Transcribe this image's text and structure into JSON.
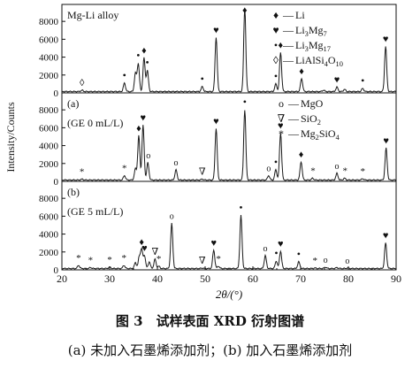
{
  "caption": {
    "title": "图 3　试样表面 XRD 衍射图谱",
    "subtitle": "(a) 未加入石墨烯添加剂；(b) 加入石墨烯添加剂"
  },
  "chart_data": {
    "type": "line",
    "xlabel": "2θ/(°)",
    "ylabel": "Intensity/Counts",
    "xlim": [
      20,
      90
    ],
    "ylim": [
      0,
      9500
    ],
    "x_ticks": [
      20,
      30,
      40,
      50,
      60,
      70,
      80,
      90
    ],
    "x_tick_labels": [
      "20",
      "30",
      "40",
      "50",
      "60",
      "70",
      "80",
      "90"
    ],
    "y_ticks": [
      0,
      2000,
      4000,
      6000,
      8000
    ],
    "y_tick_labels": [
      "0",
      "2000",
      "4000",
      "6000",
      "8000"
    ],
    "grid": false,
    "stacked_panels": true,
    "markers": {
      "Li": "♦",
      "Li3Mg7": "♥",
      "Li3Mg17": "•",
      "LiAlSi4O10": "◊",
      "MgO": "o",
      "SiO2": "∇",
      "Mg2SiO4": "*"
    },
    "panels": [
      {
        "id": "alloy",
        "label": "Mg-Li alloy",
        "label2": "",
        "line_color": "#1a1a1a",
        "baseline": 150,
        "peaks": [
          {
            "x": 24.2,
            "y": 300
          },
          {
            "x": 33.1,
            "y": 1100
          },
          {
            "x": 35.4,
            "y": 2200
          },
          {
            "x": 36.0,
            "y": 3300
          },
          {
            "x": 37.2,
            "y": 3900
          },
          {
            "x": 37.9,
            "y": 2500
          },
          {
            "x": 49.4,
            "y": 700
          },
          {
            "x": 52.3,
            "y": 6200
          },
          {
            "x": 58.3,
            "y": 9500
          },
          {
            "x": 64.8,
            "y": 1000
          },
          {
            "x": 65.8,
            "y": 4500
          },
          {
            "x": 70.2,
            "y": 1600
          },
          {
            "x": 74.8,
            "y": 300
          },
          {
            "x": 77.6,
            "y": 650
          },
          {
            "x": 79.2,
            "y": 400
          },
          {
            "x": 83.0,
            "y": 500
          },
          {
            "x": 87.8,
            "y": 5200
          }
        ],
        "labels": [
          {
            "s": "♦",
            "x": 58.3,
            "y": 9500
          },
          {
            "s": "♥",
            "x": 52.3,
            "y": 6200
          },
          {
            "s": "♦",
            "x": 65.8,
            "y": 4500
          },
          {
            "s": "♥",
            "x": 87.8,
            "y": 5200
          },
          {
            "s": "♦",
            "x": 37.2,
            "y": 3900
          },
          {
            "s": "•",
            "x": 36.0,
            "y": 3300
          },
          {
            "s": "•",
            "x": 37.9,
            "y": 2500
          },
          {
            "s": "•",
            "x": 33.1,
            "y": 1100
          },
          {
            "s": "•",
            "x": 49.4,
            "y": 700
          },
          {
            "s": "•",
            "x": 64.8,
            "y": 1000
          },
          {
            "s": "♦",
            "x": 70.2,
            "y": 1600
          },
          {
            "s": "♥",
            "x": 77.6,
            "y": 650
          },
          {
            "s": "•",
            "x": 83.0,
            "y": 500
          },
          {
            "s": "◊",
            "x": 24.2,
            "y": 300
          }
        ],
        "legend": [
          {
            "symbol": "♦",
            "text": "Li"
          },
          {
            "symbol": "♥",
            "text": "Li3Mg7"
          },
          {
            "symbol": "•",
            "text": "Li3Mg17"
          },
          {
            "symbol": "◊",
            "text": "LiAlSi4O10"
          }
        ]
      },
      {
        "id": "a",
        "label": "(a)",
        "label2": "(GE 0 mL/L)",
        "line_color": "#1a1a1a",
        "baseline": 150,
        "peaks": [
          {
            "x": 24.2,
            "y": 250
          },
          {
            "x": 33.1,
            "y": 650
          },
          {
            "x": 35.4,
            "y": 1400
          },
          {
            "x": 36.1,
            "y": 5100
          },
          {
            "x": 37.0,
            "y": 6300
          },
          {
            "x": 38.0,
            "y": 2100
          },
          {
            "x": 43.9,
            "y": 1300
          },
          {
            "x": 49.4,
            "y": 250
          },
          {
            "x": 52.3,
            "y": 5900
          },
          {
            "x": 58.3,
            "y": 8000
          },
          {
            "x": 63.3,
            "y": 650
          },
          {
            "x": 64.8,
            "y": 1300
          },
          {
            "x": 65.8,
            "y": 5400
          },
          {
            "x": 70.1,
            "y": 2200
          },
          {
            "x": 72.5,
            "y": 350
          },
          {
            "x": 77.6,
            "y": 900
          },
          {
            "x": 79.2,
            "y": 350
          },
          {
            "x": 83.0,
            "y": 300
          },
          {
            "x": 87.9,
            "y": 3700
          }
        ],
        "labels": [
          {
            "s": "•",
            "x": 58.3,
            "y": 8000
          },
          {
            "s": "♥",
            "x": 37.0,
            "y": 6300
          },
          {
            "s": "♥",
            "x": 52.3,
            "y": 5900
          },
          {
            "s": "♥",
            "x": 65.8,
            "y": 5400
          },
          {
            "s": "♥",
            "x": 87.9,
            "y": 3700
          },
          {
            "s": "♦",
            "x": 36.1,
            "y": 5100
          },
          {
            "s": "o",
            "x": 38.1,
            "y": 2100
          },
          {
            "s": "o",
            "x": 43.9,
            "y": 1300
          },
          {
            "s": "∇",
            "x": 49.4,
            "y": 250
          },
          {
            "s": "o",
            "x": 63.3,
            "y": 650
          },
          {
            "s": "•",
            "x": 64.8,
            "y": 1300
          },
          {
            "s": "♦",
            "x": 70.1,
            "y": 2200
          },
          {
            "s": "*",
            "x": 72.6,
            "y": 350
          },
          {
            "s": "o",
            "x": 77.6,
            "y": 900
          },
          {
            "s": "*",
            "x": 33.1,
            "y": 650
          },
          {
            "s": "*",
            "x": 24.2,
            "y": 250
          },
          {
            "s": "*",
            "x": 79.3,
            "y": 350
          },
          {
            "s": "*",
            "x": 83.0,
            "y": 300
          }
        ],
        "legend": [
          {
            "symbol": "o",
            "text": "MgO"
          },
          {
            "symbol": "∇",
            "text": "SiO2"
          },
          {
            "symbol": "*",
            "text": "Mg2SiO4"
          }
        ]
      },
      {
        "id": "b",
        "label": "(b)",
        "label2": "(GE 5 mL/L)",
        "line_color": "#1a1a1a",
        "baseline": 150,
        "peaks": [
          {
            "x": 23.5,
            "y": 500
          },
          {
            "x": 26.0,
            "y": 250
          },
          {
            "x": 30.0,
            "y": 300
          },
          {
            "x": 33.0,
            "y": 500
          },
          {
            "x": 35.4,
            "y": 800
          },
          {
            "x": 36.2,
            "y": 1400
          },
          {
            "x": 36.7,
            "y": 2300
          },
          {
            "x": 37.3,
            "y": 1600
          },
          {
            "x": 38.3,
            "y": 900
          },
          {
            "x": 39.5,
            "y": 1200
          },
          {
            "x": 40.3,
            "y": 400
          },
          {
            "x": 43.0,
            "y": 5200
          },
          {
            "x": 49.4,
            "y": 200
          },
          {
            "x": 51.8,
            "y": 2200
          },
          {
            "x": 52.8,
            "y": 400
          },
          {
            "x": 57.5,
            "y": 6100
          },
          {
            "x": 62.6,
            "y": 1600
          },
          {
            "x": 64.9,
            "y": 1000
          },
          {
            "x": 65.8,
            "y": 2100
          },
          {
            "x": 69.6,
            "y": 900
          },
          {
            "x": 73.0,
            "y": 200
          },
          {
            "x": 75.2,
            "y": 300
          },
          {
            "x": 77.6,
            "y": 250
          },
          {
            "x": 79.8,
            "y": 200
          },
          {
            "x": 87.8,
            "y": 3000
          }
        ],
        "labels": [
          {
            "s": "•",
            "x": 57.5,
            "y": 6100
          },
          {
            "s": "o",
            "x": 43.0,
            "y": 5200
          },
          {
            "s": "♥",
            "x": 51.8,
            "y": 2200
          },
          {
            "s": "♥",
            "x": 65.8,
            "y": 2100
          },
          {
            "s": "♥",
            "x": 87.8,
            "y": 3000
          },
          {
            "s": "♦",
            "x": 36.7,
            "y": 2300
          },
          {
            "s": "♥",
            "x": 37.3,
            "y": 1600
          },
          {
            "s": "o",
            "x": 62.6,
            "y": 1600
          },
          {
            "s": "•",
            "x": 64.9,
            "y": 1000
          },
          {
            "s": "•",
            "x": 69.6,
            "y": 900
          },
          {
            "s": "∇",
            "x": 39.5,
            "y": 1200
          },
          {
            "s": "∇",
            "x": 49.4,
            "y": 200
          },
          {
            "s": "*",
            "x": 23.5,
            "y": 500
          },
          {
            "s": "*",
            "x": 26.0,
            "y": 250
          },
          {
            "s": "*",
            "x": 30.0,
            "y": 300
          },
          {
            "s": "*",
            "x": 33.0,
            "y": 500
          },
          {
            "s": "*",
            "x": 40.3,
            "y": 400
          },
          {
            "s": "*",
            "x": 52.8,
            "y": 400
          },
          {
            "s": "*",
            "x": 73.0,
            "y": 200
          },
          {
            "s": "o",
            "x": 75.2,
            "y": 300
          },
          {
            "s": "o",
            "x": 79.8,
            "y": 200
          }
        ],
        "legend": []
      }
    ]
  }
}
